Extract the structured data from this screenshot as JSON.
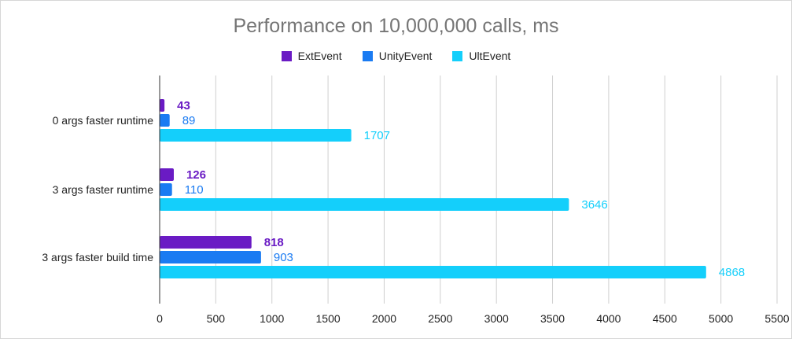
{
  "chart_data": {
    "type": "bar",
    "orientation": "horizontal",
    "title": "Performance on 10,000,000 calls, ms",
    "categories": [
      "0 args faster runtime",
      "3 args faster runtime",
      "3 args faster build time"
    ],
    "series": [
      {
        "name": "ExtEvent",
        "color": "#6a1bc4",
        "values": [
          43,
          126,
          818
        ],
        "label_bold": true
      },
      {
        "name": "UnityEvent",
        "color": "#1a7bf2",
        "values": [
          89,
          110,
          903
        ],
        "label_bold": false
      },
      {
        "name": "UltEvent",
        "color": "#14cffb",
        "values": [
          1707,
          3646,
          4868
        ],
        "label_bold": false
      }
    ],
    "xlim": [
      0,
      5500
    ],
    "xticks": [
      0,
      500,
      1000,
      1500,
      2000,
      2500,
      3000,
      3500,
      4000,
      4500,
      5000,
      5500
    ],
    "xlabel": "",
    "ylabel": "",
    "grid": true,
    "legend_position": "top"
  }
}
